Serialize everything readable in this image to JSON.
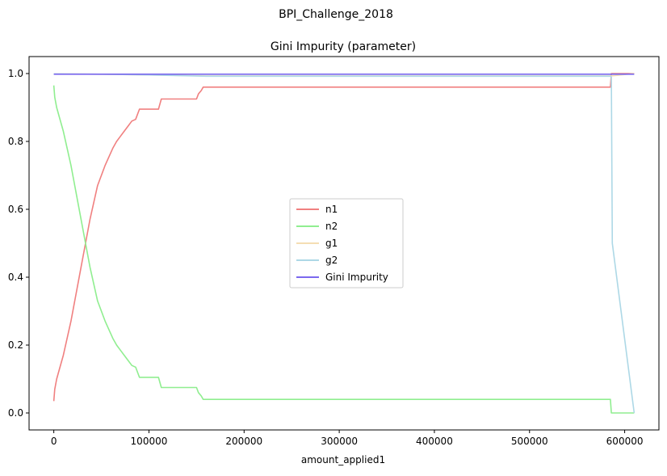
{
  "suptitle": "BPI_Challenge_2018",
  "chart_data": {
    "type": "line",
    "title": "Gini Impurity (parameter)",
    "xlabel": "amount_applied1",
    "ylabel": "",
    "xlim": [
      -26000,
      636000
    ],
    "ylim": [
      -0.05,
      1.05
    ],
    "xticks": [
      0,
      100000,
      200000,
      300000,
      400000,
      500000,
      600000
    ],
    "xtick_labels": [
      "0",
      "100000",
      "200000",
      "300000",
      "400000",
      "500000",
      "600000"
    ],
    "yticks": [
      0.0,
      0.2,
      0.4,
      0.6,
      0.8,
      1.0
    ],
    "ytick_labels": [
      "0.0",
      "0.2",
      "0.4",
      "0.6",
      "0.8",
      "1.0"
    ],
    "grid": false,
    "legend_position": "center",
    "series": [
      {
        "name": "n1",
        "color": "#f08080",
        "x": [
          0,
          1000,
          3000,
          6000,
          10000,
          14000,
          18000,
          22000,
          26000,
          30000,
          34000,
          38000,
          42000,
          46000,
          50000,
          54000,
          58000,
          62000,
          66000,
          70000,
          74000,
          78000,
          82000,
          86000,
          90000,
          95000,
          100000,
          105000,
          110000,
          113000,
          120000,
          130000,
          140000,
          150000,
          152000,
          155000,
          157000,
          170000,
          200000,
          300000,
          400000,
          500000,
          585000,
          586000,
          587000,
          610000
        ],
        "y": [
          0.035,
          0.07,
          0.1,
          0.13,
          0.17,
          0.22,
          0.27,
          0.33,
          0.39,
          0.45,
          0.51,
          0.57,
          0.62,
          0.67,
          0.7,
          0.73,
          0.755,
          0.78,
          0.8,
          0.815,
          0.83,
          0.845,
          0.86,
          0.865,
          0.895,
          0.895,
          0.895,
          0.895,
          0.895,
          0.925,
          0.925,
          0.925,
          0.925,
          0.925,
          0.94,
          0.95,
          0.96,
          0.96,
          0.96,
          0.96,
          0.96,
          0.96,
          0.96,
          1.0,
          1.0,
          1.0
        ]
      },
      {
        "name": "n2",
        "color": "#90ee90",
        "x": [
          0,
          1000,
          3000,
          6000,
          10000,
          14000,
          18000,
          22000,
          26000,
          30000,
          34000,
          38000,
          42000,
          46000,
          50000,
          54000,
          58000,
          62000,
          66000,
          70000,
          74000,
          78000,
          82000,
          86000,
          90000,
          95000,
          100000,
          105000,
          110000,
          113000,
          120000,
          130000,
          140000,
          150000,
          152000,
          155000,
          157000,
          170000,
          200000,
          300000,
          400000,
          500000,
          585000,
          586000,
          587000,
          610000
        ],
        "y": [
          0.965,
          0.93,
          0.9,
          0.87,
          0.83,
          0.78,
          0.73,
          0.67,
          0.61,
          0.55,
          0.49,
          0.43,
          0.38,
          0.33,
          0.3,
          0.27,
          0.245,
          0.22,
          0.2,
          0.185,
          0.17,
          0.155,
          0.14,
          0.135,
          0.105,
          0.105,
          0.105,
          0.105,
          0.105,
          0.075,
          0.075,
          0.075,
          0.075,
          0.075,
          0.06,
          0.05,
          0.04,
          0.04,
          0.04,
          0.04,
          0.04,
          0.04,
          0.04,
          0.0,
          0.0,
          0.0
        ]
      },
      {
        "name": "g1",
        "color": "#f5deb3",
        "x": [
          0,
          50000,
          100000,
          160000,
          300000,
          500000,
          586000,
          610000
        ],
        "y": [
          0.999,
          0.998,
          0.996,
          0.993,
          0.993,
          0.993,
          0.993,
          1.0
        ]
      },
      {
        "name": "g2",
        "color": "#add8e6",
        "x": [
          0,
          50000,
          100000,
          160000,
          300000,
          500000,
          585000,
          586000,
          587000,
          610000
        ],
        "y": [
          0.999,
          0.998,
          0.996,
          0.992,
          0.992,
          0.992,
          0.992,
          0.99,
          0.5,
          0.0
        ]
      },
      {
        "name": "Gini Impurity",
        "color": "#7b68ee",
        "x": [
          0,
          100000,
          200000,
          300000,
          400000,
          500000,
          600000,
          610000
        ],
        "y": [
          0.998,
          0.998,
          0.998,
          0.998,
          0.998,
          0.998,
          0.998,
          0.998
        ]
      }
    ]
  }
}
